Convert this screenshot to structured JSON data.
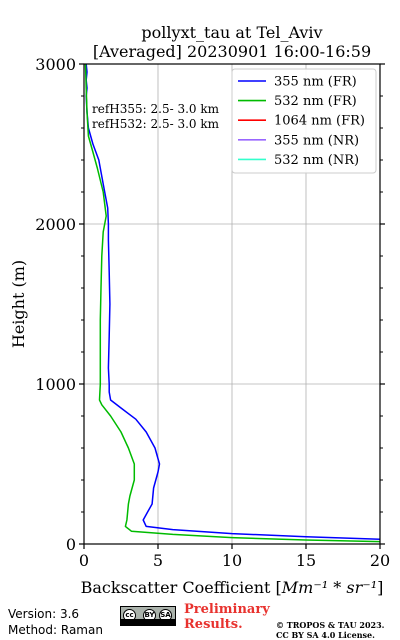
{
  "chart_data": {
    "type": "line",
    "title": "pollyxt_tau at Tel_Aviv",
    "subtitle": "[Averaged] 20230901 16:00-16:59",
    "xlabel": "Backscatter Coefficient [",
    "xlabel_unit": "Mm⁻¹ * sr⁻¹",
    "xlabel_end": "]",
    "ylabel": "Height (m)",
    "xlim": [
      0,
      20
    ],
    "ylim": [
      0,
      3000
    ],
    "xticks": [
      0,
      5,
      10,
      15,
      20
    ],
    "yticks": [
      0,
      1000,
      2000,
      3000
    ],
    "grid": true,
    "legend_position": "top-right",
    "annotations": [
      "refH355:  2.5- 3.0 km",
      "refH532:  2.5- 3.0 km"
    ],
    "legend": [
      {
        "name": "355 nm (FR)",
        "color": "#0000ff"
      },
      {
        "name": "532 nm (FR)",
        "color": "#00bb00"
      },
      {
        "name": "1064 nm (FR)",
        "color": "#ff0000"
      },
      {
        "name": "355 nm (NR)",
        "color": "#9966ff"
      },
      {
        "name": "532 nm (NR)",
        "color": "#33ffcc"
      }
    ],
    "series": [
      {
        "name": "355 nm (FR)",
        "color": "#0000ff",
        "points": [
          [
            20,
            30
          ],
          [
            15,
            45
          ],
          [
            10,
            65
          ],
          [
            6,
            90
          ],
          [
            4.2,
            110
          ],
          [
            4,
            150
          ],
          [
            4.3,
            200
          ],
          [
            4.6,
            250
          ],
          [
            4.7,
            350
          ],
          [
            5,
            450
          ],
          [
            5.1,
            500
          ],
          [
            4.8,
            600
          ],
          [
            4.2,
            700
          ],
          [
            3.5,
            780
          ],
          [
            2.5,
            850
          ],
          [
            1.8,
            900
          ],
          [
            1.7,
            950
          ],
          [
            1.7,
            1000
          ],
          [
            1.65,
            1100
          ],
          [
            1.7,
            1300
          ],
          [
            1.75,
            1500
          ],
          [
            1.7,
            1700
          ],
          [
            1.65,
            1900
          ],
          [
            1.65,
            2000
          ],
          [
            1.6,
            2100
          ],
          [
            1.3,
            2250
          ],
          [
            1.0,
            2400
          ],
          [
            0.6,
            2500
          ],
          [
            0.3,
            2600
          ],
          [
            0.2,
            2700
          ],
          [
            0.15,
            2800
          ],
          [
            0.2,
            2850
          ],
          [
            0.15,
            2900
          ],
          [
            0.2,
            2950
          ],
          [
            0.15,
            3000
          ]
        ]
      },
      {
        "name": "532 nm (FR)",
        "color": "#00bb00",
        "points": [
          [
            20,
            15
          ],
          [
            15,
            25
          ],
          [
            10,
            40
          ],
          [
            6,
            60
          ],
          [
            3.2,
            80
          ],
          [
            2.8,
            110
          ],
          [
            2.9,
            150
          ],
          [
            3.0,
            250
          ],
          [
            3.1,
            300
          ],
          [
            3.4,
            400
          ],
          [
            3.4,
            500
          ],
          [
            3.0,
            600
          ],
          [
            2.5,
            700
          ],
          [
            1.8,
            800
          ],
          [
            1.2,
            870
          ],
          [
            1.05,
            900
          ],
          [
            1.1,
            1000
          ],
          [
            1.1,
            1200
          ],
          [
            1.1,
            1400
          ],
          [
            1.15,
            1600
          ],
          [
            1.2,
            1800
          ],
          [
            1.3,
            1950
          ],
          [
            1.5,
            2050
          ],
          [
            1.3,
            2200
          ],
          [
            0.9,
            2350
          ],
          [
            0.6,
            2450
          ],
          [
            0.3,
            2550
          ],
          [
            0.2,
            2700
          ],
          [
            0.15,
            2850
          ],
          [
            0.1,
            3000
          ]
        ]
      }
    ]
  },
  "footer": {
    "version": "Version: 3.6",
    "method": "Method: Raman",
    "license_badge": [
      "cc",
      "BY",
      "SA"
    ],
    "preliminary_line1": "Preliminary",
    "preliminary_line2": "Results.",
    "copyright_line1": "© TROPOS & TAU 2023.",
    "copyright_line2": "CC BY SA 4.0 License."
  }
}
